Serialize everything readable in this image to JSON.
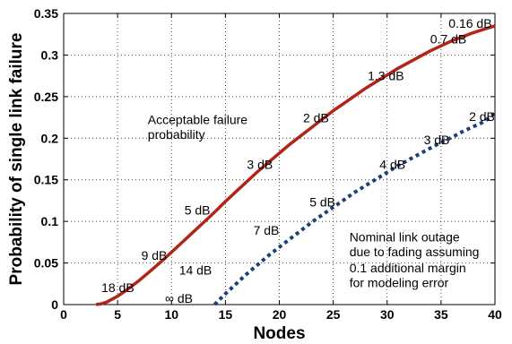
{
  "chart_data": {
    "type": "line",
    "xlabel": "Nodes",
    "ylabel": "Probability of single link failure",
    "xlim": [
      0,
      40
    ],
    "ylim": [
      0,
      0.35
    ],
    "xticks": [
      0,
      5,
      10,
      15,
      20,
      25,
      30,
      35,
      40
    ],
    "yticks": [
      0,
      0.05,
      0.1,
      0.15,
      0.2,
      0.25,
      0.3,
      0.35
    ],
    "xtick_labels": [
      "0",
      "5",
      "10",
      "15",
      "20",
      "25",
      "30",
      "35",
      "40"
    ],
    "ytick_labels": [
      "0",
      "0.05",
      "0.1",
      "0.15",
      "0.2",
      "0.25",
      "0.3",
      "0.35"
    ],
    "grid": true,
    "series": [
      {
        "color": "#b22418",
        "style": "solid",
        "x": [
          3,
          3.5,
          4,
          5,
          6,
          7,
          8,
          9,
          10,
          11,
          12,
          13,
          14,
          15,
          16,
          17,
          18,
          19,
          20,
          21,
          22,
          23,
          24,
          25,
          26,
          27,
          28,
          29,
          30,
          31,
          32,
          33,
          34,
          35,
          36,
          37,
          38,
          39,
          40
        ],
        "y": [
          0,
          0.001,
          0.003,
          0.01,
          0.019,
          0.029,
          0.04,
          0.051,
          0.063,
          0.075,
          0.087,
          0.099,
          0.111,
          0.124,
          0.136,
          0.148,
          0.16,
          0.171,
          0.182,
          0.193,
          0.203,
          0.213,
          0.223,
          0.233,
          0.242,
          0.251,
          0.26,
          0.268,
          0.276,
          0.284,
          0.291,
          0.298,
          0.305,
          0.311,
          0.317,
          0.322,
          0.327,
          0.331,
          0.335
        ]
      },
      {
        "color": "#1c3e7a",
        "style": "dotted",
        "x": [
          14,
          15,
          16,
          17,
          18,
          19,
          20,
          21,
          22,
          23,
          24,
          25,
          26,
          27,
          28,
          29,
          30,
          31,
          32,
          33,
          34,
          35,
          36,
          37,
          38,
          39,
          40
        ],
        "y": [
          0,
          0.013,
          0.025,
          0.037,
          0.048,
          0.059,
          0.069,
          0.079,
          0.089,
          0.099,
          0.108,
          0.117,
          0.126,
          0.135,
          0.143,
          0.151,
          0.159,
          0.167,
          0.174,
          0.181,
          0.188,
          0.195,
          0.201,
          0.208,
          0.214,
          0.22,
          0.23
        ]
      }
    ],
    "annotations": [
      {
        "text": "Acceptable failure",
        "x": 7.8,
        "y": 0.217
      },
      {
        "text": "probability",
        "x": 7.8,
        "y": 0.199
      },
      {
        "text": "Nominal link outage",
        "x": 26.5,
        "y": 0.076
      },
      {
        "text": "due to fading assuming",
        "x": 26.5,
        "y": 0.058
      },
      {
        "text": "0.1 additional margin",
        "x": 26.5,
        "y": 0.039
      },
      {
        "text": "for modeling error",
        "x": 26.5,
        "y": 0.021
      },
      {
        "text": "18 dB",
        "x": 3.5,
        "y": 0.015
      },
      {
        "text": "9 dB",
        "x": 7.2,
        "y": 0.054
      },
      {
        "text": "5 dB",
        "x": 11.2,
        "y": 0.108
      },
      {
        "text": "3 dB",
        "x": 17.0,
        "y": 0.163
      },
      {
        "text": "2 dB",
        "x": 22.2,
        "y": 0.219
      },
      {
        "text": "1.3 dB",
        "x": 28.2,
        "y": 0.27
      },
      {
        "text": "0.7 dB",
        "x": 34.0,
        "y": 0.314
      },
      {
        "text": "0.16 dB",
        "x": 35.7,
        "y": 0.333
      },
      {
        "text": "∞ dB",
        "x": 9.4,
        "y": 0.002
      },
      {
        "text": "14 dB",
        "x": 10.7,
        "y": 0.036
      },
      {
        "text": "7 dB",
        "x": 17.6,
        "y": 0.084
      },
      {
        "text": "5 dB",
        "x": 22.8,
        "y": 0.118
      },
      {
        "text": "4 dB",
        "x": 29.3,
        "y": 0.163
      },
      {
        "text": "3 dB",
        "x": 33.4,
        "y": 0.193
      },
      {
        "text": "2 dB",
        "x": 37.6,
        "y": 0.221
      }
    ]
  }
}
